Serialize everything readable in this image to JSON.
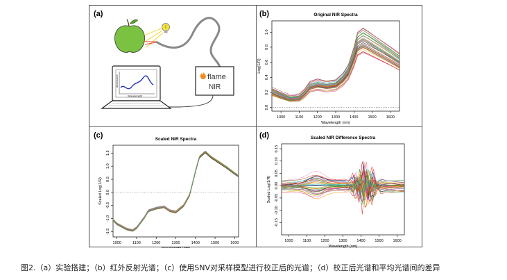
{
  "panels": {
    "a": {
      "label": "(a)",
      "device_brand": "flame",
      "device_model": "NIR",
      "laptop_ylabel": "Absorbance",
      "laptop_xlabel": "Wavelength"
    },
    "b": {
      "label": "(b)"
    },
    "c": {
      "label": "(c)"
    },
    "d": {
      "label": "(d)"
    }
  },
  "caption": "图2.（a）实验搭建；（b）红外反射光谱；（c）使用SNV对采样模型进行校正后的光谱；（d）校正后光谱和平均光谱间的差异",
  "colors": {
    "apple": "#7cc242",
    "bulb": "#f3e33a",
    "flame_logo": "#f28a1e",
    "frame": "#444444"
  },
  "chart_data": [
    {
      "id": "b",
      "type": "line",
      "title": "Original NIR Spectra",
      "xlabel": "Wavelength (nm)",
      "ylabel": "Log(1/R)",
      "xlim": [
        950,
        1650
      ],
      "ylim": [
        -0.05,
        1.15
      ],
      "xticks": [
        1000,
        1100,
        1200,
        1300,
        1400,
        1500,
        1600
      ],
      "yticks": [
        0.0,
        0.2,
        0.4,
        0.6,
        0.8,
        1.0
      ],
      "yticklabels": [
        "0.0",
        "0.2",
        "0.4",
        "0.6",
        "0.8",
        "1.0"
      ],
      "x": [
        950,
        1000,
        1050,
        1100,
        1130,
        1160,
        1200,
        1250,
        1300,
        1340,
        1370,
        1400,
        1420,
        1450,
        1480,
        1520,
        1560,
        1600,
        1650
      ],
      "mean": [
        0.2,
        0.15,
        0.11,
        0.12,
        0.18,
        0.27,
        0.3,
        0.28,
        0.3,
        0.38,
        0.48,
        0.68,
        0.85,
        0.9,
        0.86,
        0.8,
        0.74,
        0.68,
        0.6
      ],
      "series_count": 40,
      "spread": 0.18,
      "baseline": 0.0
    },
    {
      "id": "c",
      "type": "line",
      "title": "Scaled NIR Spectra",
      "xlabel": "Wavelength (nm)",
      "ylabel": "Scaled Log(1/R)",
      "xlim": [
        980,
        1620
      ],
      "ylim": [
        -1.7,
        1.8
      ],
      "xticks": [
        1000,
        1100,
        1200,
        1300,
        1400,
        1500,
        1600
      ],
      "yticks": [
        -1.5,
        -1.0,
        -0.5,
        0.0,
        0.5,
        1.0,
        1.5
      ],
      "yticklabels": [
        "-1.5",
        "-1.0",
        "-0.5",
        "0.0",
        "0.5",
        "1.0",
        "1.5"
      ],
      "x": [
        980,
        1000,
        1050,
        1080,
        1100,
        1140,
        1160,
        1200,
        1240,
        1270,
        1300,
        1340,
        1370,
        1400,
        1420,
        1450,
        1480,
        1520,
        1560,
        1600,
        1620
      ],
      "mean": [
        -1.05,
        -1.2,
        -1.4,
        -1.45,
        -1.35,
        -0.95,
        -0.7,
        -0.6,
        -0.55,
        -0.7,
        -0.75,
        -0.5,
        -0.1,
        0.8,
        1.35,
        1.55,
        1.35,
        1.15,
        0.95,
        0.72,
        0.62
      ],
      "series_count": 35,
      "spread": 0.05,
      "baseline": 0.0
    },
    {
      "id": "d",
      "type": "line",
      "title": "Scaled NIR Difference Spectra",
      "xlabel": "Wavelength (nm)",
      "ylabel": "Scaled Log(1/R)",
      "xlim": [
        960,
        1640
      ],
      "ylim": [
        -0.2,
        0.17
      ],
      "xticks": [
        1000,
        1100,
        1200,
        1300,
        1400,
        1500,
        1600
      ],
      "yticks": [
        -0.15,
        -0.1,
        -0.05,
        0.0,
        0.05,
        0.1,
        0.15
      ],
      "yticklabels": [
        "-0.15",
        "-0.10",
        "-0.05",
        "0.00",
        "0.05",
        "0.10",
        "0.15"
      ],
      "x": [
        960,
        1000,
        1050,
        1100,
        1150,
        1200,
        1250,
        1300,
        1350,
        1380,
        1400,
        1420,
        1440,
        1460,
        1500,
        1550,
        1600,
        1640
      ],
      "series_count": 40,
      "spread": 0.05,
      "baseline": 0.0
    }
  ]
}
